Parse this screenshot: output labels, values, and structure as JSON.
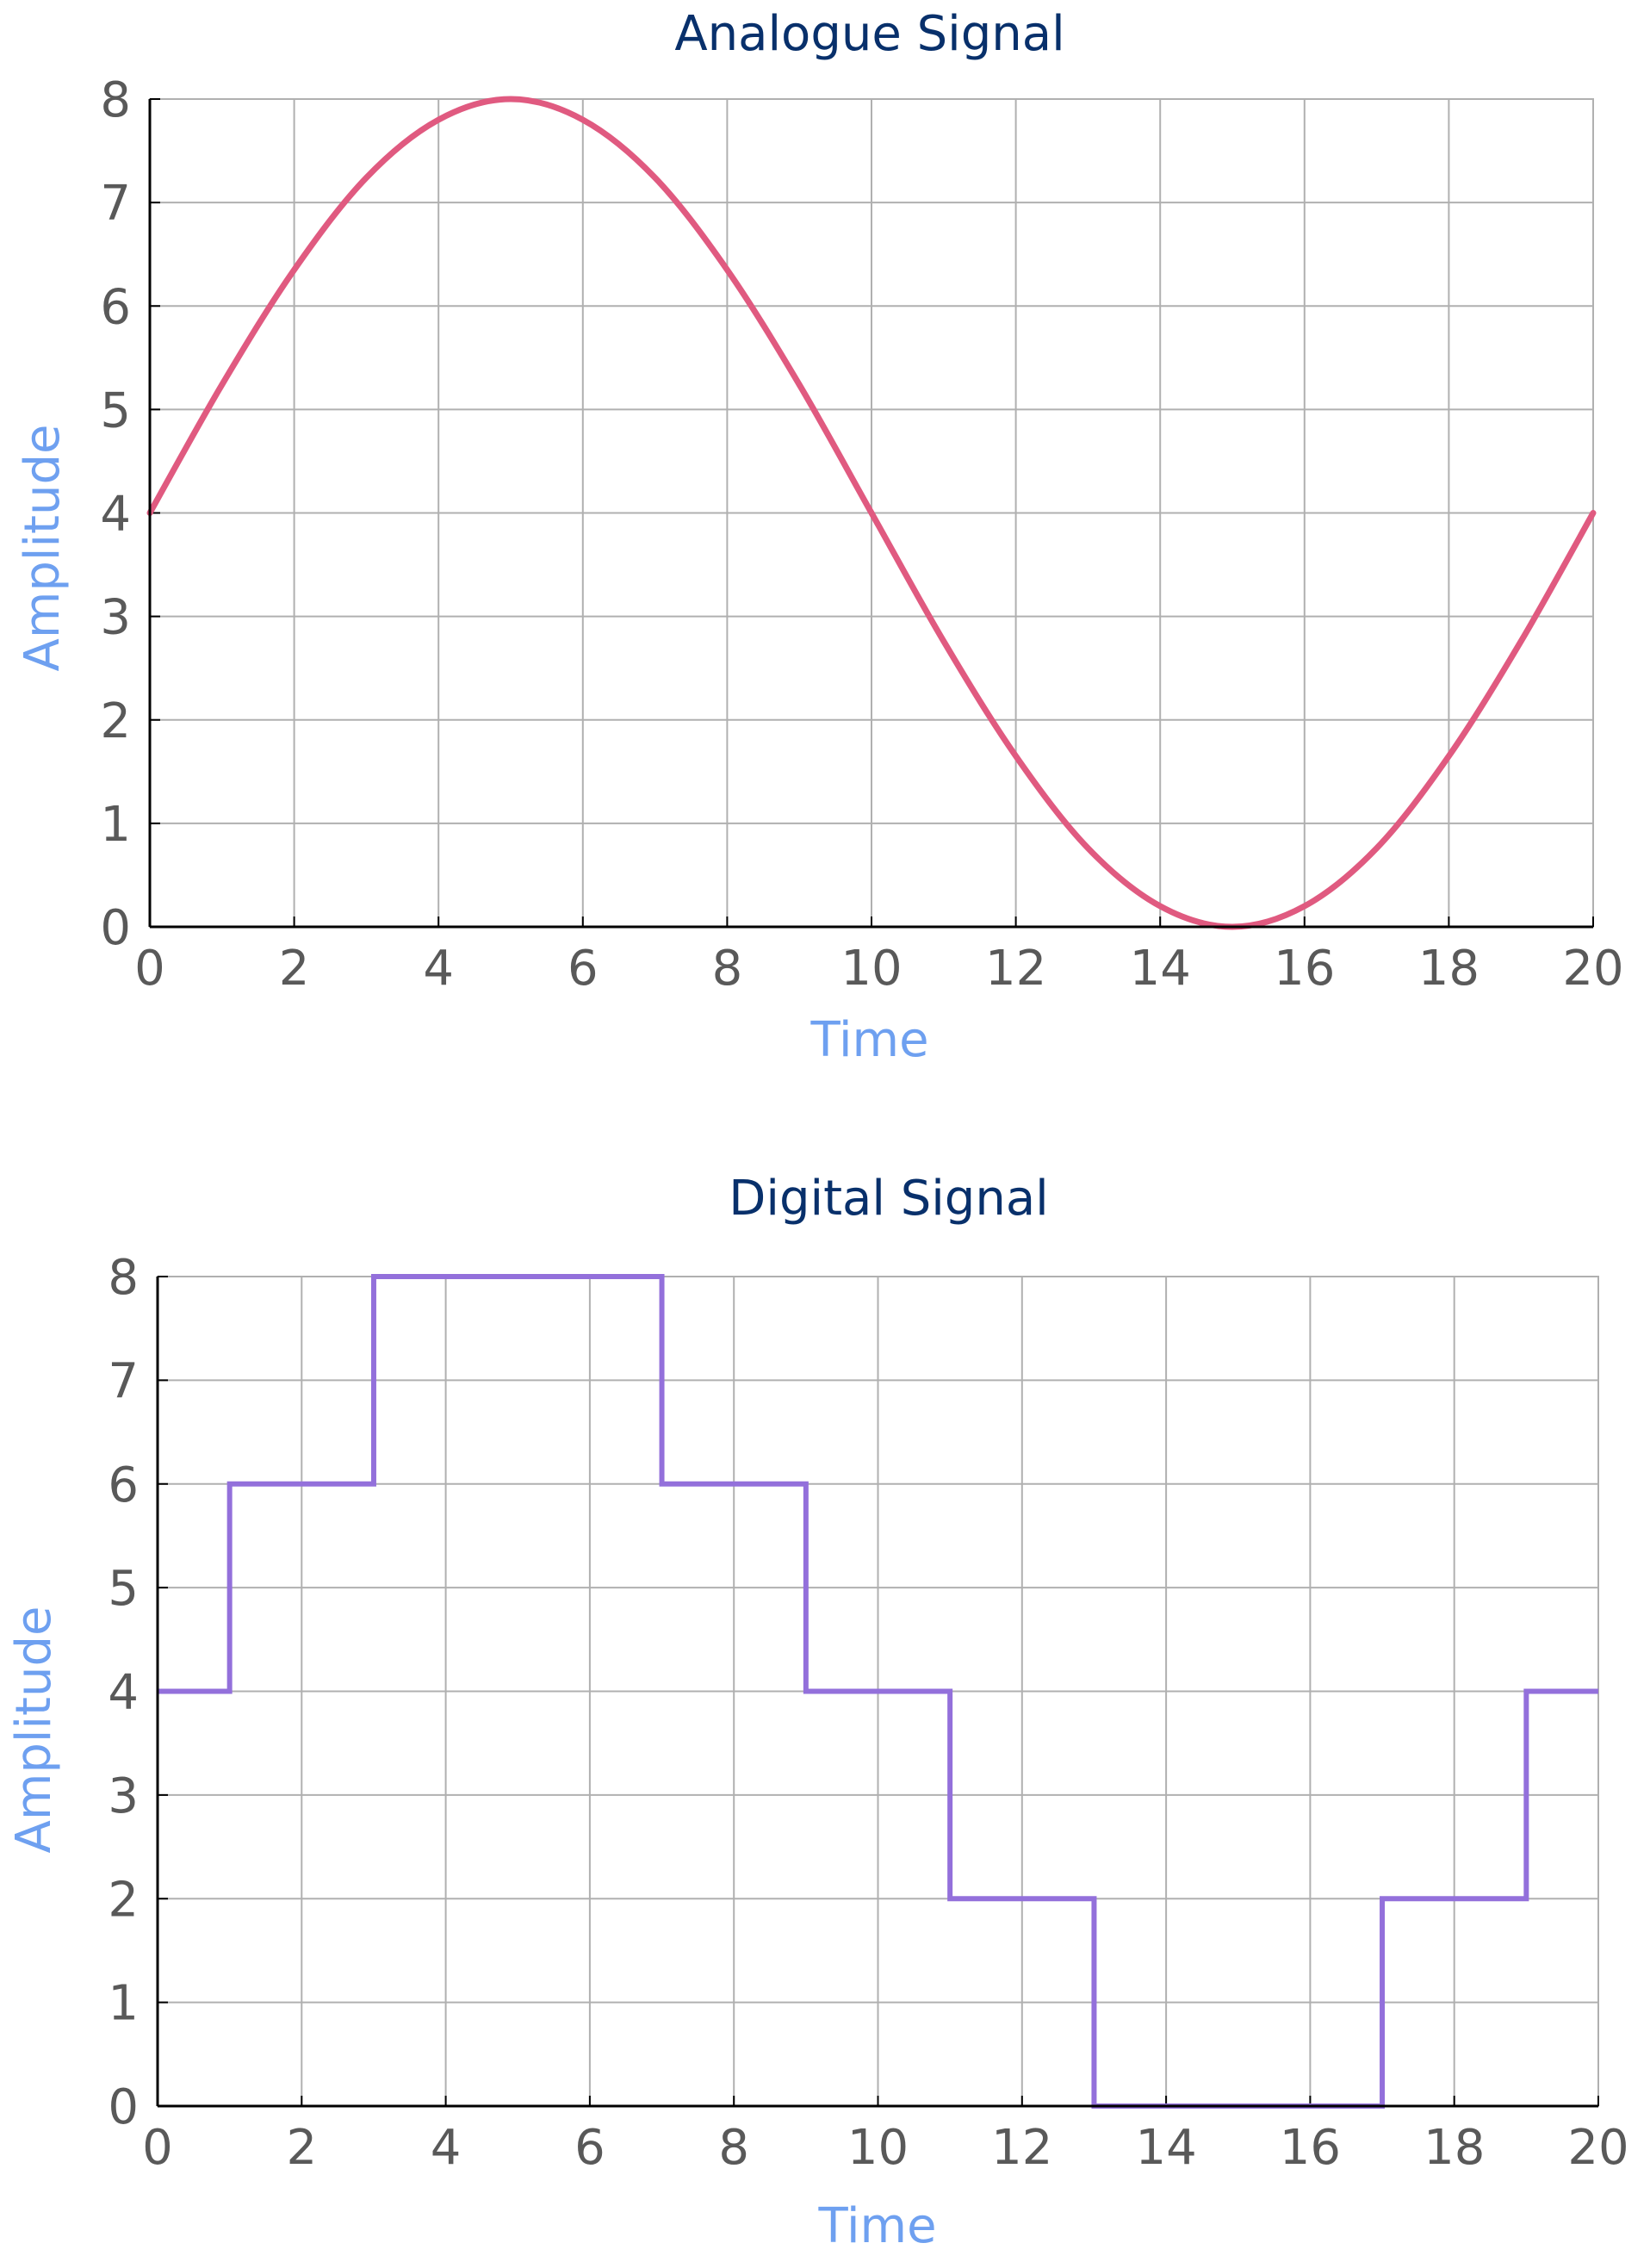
{
  "colors": {
    "title": "#08306b",
    "axis_label": "#6ea0f0",
    "tick_label": "#595959",
    "grid": "#b0b0b0",
    "axis": "#000000"
  },
  "chart_data": [
    {
      "type": "line",
      "title": "Analogue Signal",
      "xlabel": "Time",
      "ylabel": "Amplitude",
      "xlim": [
        0,
        20
      ],
      "ylim": [
        0,
        8
      ],
      "xticks": [
        "0",
        "2",
        "4",
        "6",
        "8",
        "10",
        "12",
        "14",
        "16",
        "18",
        "20"
      ],
      "yticks": [
        "0",
        "1",
        "2",
        "3",
        "4",
        "5",
        "6",
        "7",
        "8"
      ],
      "grid": true,
      "series": [
        {
          "color": "#e05a80",
          "x": [
            0,
            1,
            2,
            3,
            4,
            5,
            6,
            7,
            8,
            9,
            10,
            11,
            12,
            13,
            14,
            15,
            16,
            17,
            18,
            19,
            20
          ],
          "y": [
            4.0,
            5.24,
            6.35,
            7.24,
            7.8,
            8.0,
            7.8,
            7.24,
            6.35,
            5.24,
            4.0,
            2.76,
            1.65,
            0.76,
            0.2,
            0.0,
            0.2,
            0.76,
            1.65,
            2.76,
            4.0
          ]
        }
      ]
    },
    {
      "type": "line",
      "title": "Digital Signal",
      "xlabel": "Time",
      "ylabel": "Amplitude",
      "xlim": [
        0,
        20
      ],
      "ylim": [
        0,
        8
      ],
      "xticks": [
        "0",
        "2",
        "4",
        "6",
        "8",
        "10",
        "12",
        "14",
        "16",
        "18",
        "20"
      ],
      "yticks": [
        "0",
        "1",
        "2",
        "3",
        "4",
        "5",
        "6",
        "7",
        "8"
      ],
      "grid": true,
      "series": [
        {
          "color": "#9370db",
          "x": [
            0,
            1,
            1,
            3,
            3,
            7,
            7,
            9,
            9,
            11,
            11,
            13,
            13,
            17,
            17,
            19,
            19,
            20
          ],
          "y": [
            4,
            4,
            6,
            6,
            8,
            8,
            6,
            6,
            4,
            4,
            2,
            2,
            0,
            0,
            2,
            2,
            4,
            4
          ]
        }
      ]
    }
  ]
}
